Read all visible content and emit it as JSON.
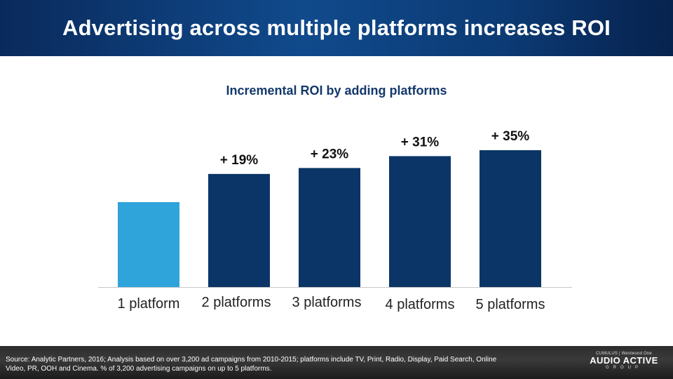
{
  "header": {
    "title": "Advertising across multiple platforms increases ROI"
  },
  "chart_data": {
    "type": "bar",
    "title": "Incremental ROI by adding platforms",
    "categories": [
      "1 platform",
      "2 platforms",
      "3 platforms",
      "4 platforms",
      "5 platforms"
    ],
    "values": [
      100,
      119,
      123,
      131,
      135
    ],
    "data_labels": [
      "",
      "+ 19%",
      "+ 23%",
      "+ 31%",
      "+ 35%"
    ],
    "colors": [
      "#2fa4da",
      "#0b3566",
      "#0b3566",
      "#0b3566",
      "#0b3566"
    ],
    "xlabel": "",
    "ylabel": "",
    "grid": false,
    "legend": "none"
  },
  "footer": {
    "source": "Source: Analytic Partners, 2016; Analysis based on over 3,200 ad campaigns from 2010-2015; platforms include TV, Print, Radio, Display, Paid Search, Online Video, PR, OOH and Cinema.  % of 3,200 advertising campaigns on up to 5 platforms.",
    "logo_top": "CUMULUS | Westwood One",
    "logo_main": "AUDIO ACTIVE",
    "logo_sub": "GROUP"
  }
}
